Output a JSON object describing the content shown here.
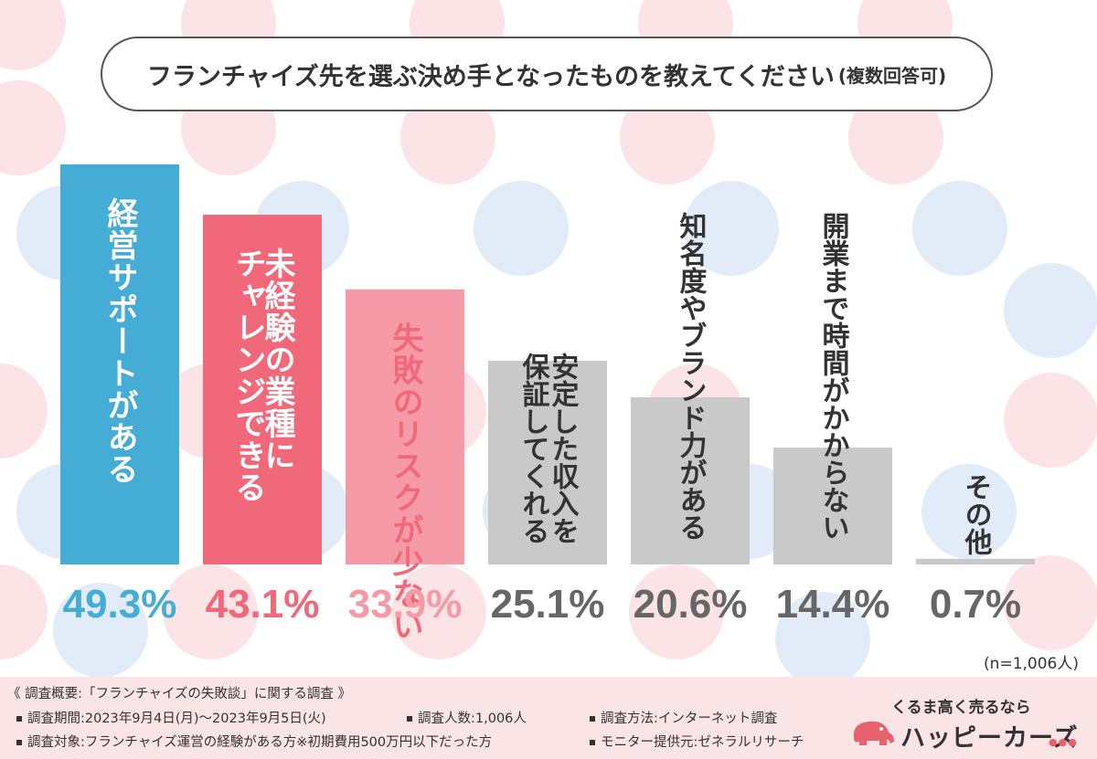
{
  "title": {
    "main": "フランチャイズ先を選ぶ決め手となったものを教えてください",
    "sub": "(複数回答可)"
  },
  "chart_data": {
    "type": "bar",
    "categories": [
      "経営サポートがある",
      "未経験の業種にチャレンジできる",
      "失敗のリスクが少ない",
      "安定した収入を保証してくれる",
      "知名度やブランド力がある",
      "開業まで時間がかからない",
      "その他"
    ],
    "bar_label_lines": [
      [
        "経営サポートがある"
      ],
      [
        "未経験の業種に",
        "チャレンジできる"
      ],
      [
        "失敗のリスクが少ない"
      ],
      [
        "安定した収入を",
        "保証してくれる"
      ],
      [
        "知名度やブランド力がある"
      ],
      [
        "開業まで時間がかからない"
      ],
      [
        "その他"
      ]
    ],
    "values": [
      49.3,
      43.1,
      33.9,
      25.1,
      20.6,
      14.4,
      0.7
    ],
    "value_labels": [
      "49.3%",
      "43.1%",
      "33.9%",
      "25.1%",
      "20.6%",
      "14.4%",
      "0.7%"
    ],
    "ylim": [
      0,
      49.3
    ],
    "colors": [
      "#45acd5",
      "#f0687a",
      "#f59aa6",
      "#c9c9c9",
      "#c9c9c9",
      "#c9c9c9",
      "#c9c9c9"
    ],
    "value_colors": [
      "#45acd5",
      "#f0687a",
      "#f59aa6",
      "#666666",
      "#666666",
      "#666666",
      "#666666"
    ],
    "grid": false,
    "legend": "none"
  },
  "sample_note": "(n=1,006人)",
  "footer": {
    "overview": "《 調査概要:「フランチャイズの失敗談」に関する調査 》",
    "period": "調査期間:2023年9月4日(月)〜2023年9月5日(火)",
    "target": "調査対象:フランチャイズ運営の経験がある方※初期費用500万円以下だった方",
    "count": "調査人数:1,006人",
    "method": "調査方法:インターネット調査",
    "provider": "モニター提供元:ゼネラルリサーチ"
  },
  "logo": {
    "tagline": "くるま高く売るなら",
    "name": "ハッピーカーズ",
    "dots": "●●●"
  },
  "theme": {
    "dot_pink": "#fbe3e6",
    "dot_blue": "#e2ecf9"
  }
}
